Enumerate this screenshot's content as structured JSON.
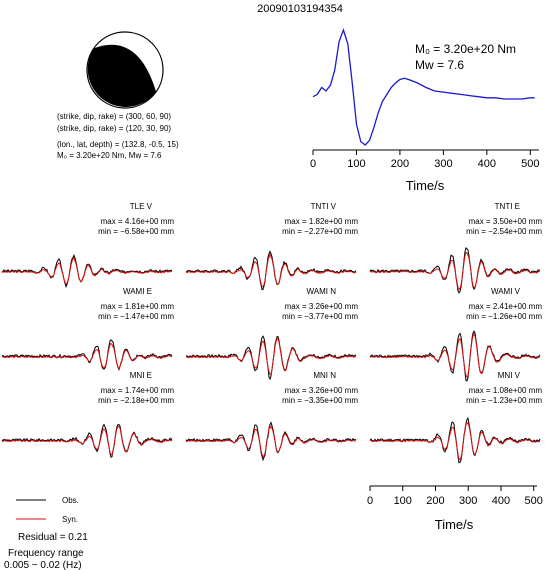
{
  "title": "20090103194354",
  "beachball": {
    "fill_color": "#000000",
    "params": [
      "(strike, dip, rake) = (300, 60, 90)",
      "(strike, dip, rake) = (120, 30, 90)",
      "(lon., lat, depth) = (132.8, -0.5, 15)",
      "M₀ = 3.20e+20 Nm, Mw = 7.6"
    ]
  },
  "stf": {
    "m0_label": "M₀ = 3.20e+20 Nm",
    "mw_label": "Mw = 7.6",
    "xlabel": "Time/s",
    "xlim": [
      0,
      520
    ],
    "xticks": [
      "0",
      "100",
      "200",
      "300",
      "400",
      "500"
    ],
    "color": "#1a1ad4"
  },
  "panels": [
    {
      "name": "TLE V",
      "max": "max = 4.16e+00 mm",
      "min": "min = −6.58e+00 mm"
    },
    {
      "name": "TNTI V",
      "max": "max = 1.82e+00 mm",
      "min": "min = −2.27e+00 mm"
    },
    {
      "name": "TNTI E",
      "max": "max = 3.50e+00 mm",
      "min": "min = −2.54e+00 mm"
    },
    {
      "name": "WAMI E",
      "max": "max = 1.81e+00 mm",
      "min": "min = −1.47e+00 mm"
    },
    {
      "name": "WAMI N",
      "max": "max = 3.26e+00 mm",
      "min": "min = −3.77e+00 mm"
    },
    {
      "name": "WAMI V",
      "max": "max = 2.41e+00 mm",
      "min": "min = −1.26e+00 mm"
    },
    {
      "name": "MNI E",
      "max": "max = 1.74e+00 mm",
      "min": "min = −2.18e+00 mm"
    },
    {
      "name": "MNI N",
      "max": "max = 3.26e+00 mm",
      "min": "min = −3.35e+00 mm"
    },
    {
      "name": "MNI V",
      "max": "max = 1.08e+00 mm",
      "min": "min = −1.23e+00 mm"
    }
  ],
  "waveform_axis": {
    "xlabel": "Time/s",
    "xticks": [
      "0",
      "100",
      "200",
      "300",
      "400",
      "500"
    ]
  },
  "legend": {
    "obs_label": "Obs.",
    "syn_label": "Syn.",
    "obs_color": "#000000",
    "syn_color": "#dd1111"
  },
  "residual": "Residual = 0.21",
  "frequency_label": "Frequency range",
  "frequency_value": "0.005 − 0.02 (Hz)",
  "chart_data": [
    {
      "type": "line",
      "title": "",
      "xlabel": "Time/s",
      "ylabel": "",
      "xlim": [
        0,
        520
      ],
      "series": [
        {
          "x": [
            0,
            10,
            20,
            30,
            40,
            50,
            60,
            70,
            80,
            90,
            100,
            110,
            120,
            130,
            140,
            150,
            160,
            170,
            180,
            190,
            200,
            210,
            220,
            240,
            260,
            280,
            300,
            320,
            340,
            360,
            380,
            400,
            420,
            440,
            460,
            480,
            500,
            510
          ],
          "values": [
            0.42,
            0.44,
            0.5,
            0.47,
            0.52,
            0.65,
            0.9,
            1.0,
            0.88,
            0.55,
            0.18,
            0.03,
            0.0,
            0.04,
            0.15,
            0.28,
            0.38,
            0.44,
            0.5,
            0.54,
            0.57,
            0.58,
            0.57,
            0.54,
            0.5,
            0.47,
            0.46,
            0.45,
            0.44,
            0.43,
            0.42,
            0.41,
            0.41,
            0.4,
            0.4,
            0.4,
            0.41,
            0.41
          ]
        }
      ]
    }
  ]
}
